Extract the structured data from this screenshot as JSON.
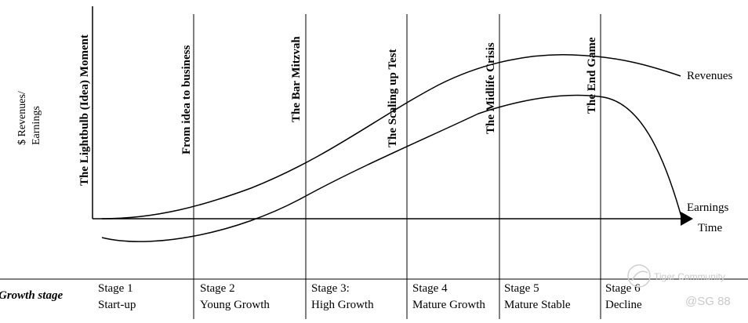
{
  "y_axis_label_line1": "$ Revenues/",
  "y_axis_label_line2": "Earnings",
  "x_axis_label": "Time",
  "series": {
    "revenues": "Revenues",
    "earnings": "Earnings"
  },
  "moments": [
    "The Lightbulb (Idea) Moment",
    "From idea to business",
    "The Bar Mitzvah",
    "The Scaling up Test",
    "The Midlife Crisis",
    "The End Game"
  ],
  "growth_stage_label": "Growth stage",
  "stages": [
    {
      "number": "Stage 1",
      "name": "Start-up"
    },
    {
      "number": "Stage 2",
      "name": "Young Growth"
    },
    {
      "number": "Stage 3:",
      "name": "High Growth"
    },
    {
      "number": "Stage 4",
      "name": "Mature Growth"
    },
    {
      "number": "Stage 5",
      "name": "Mature Stable"
    },
    {
      "number": "Stage 6",
      "name": "Decline"
    }
  ],
  "watermark": {
    "brand": "Tiger Community",
    "handle": "@SG 88"
  }
}
